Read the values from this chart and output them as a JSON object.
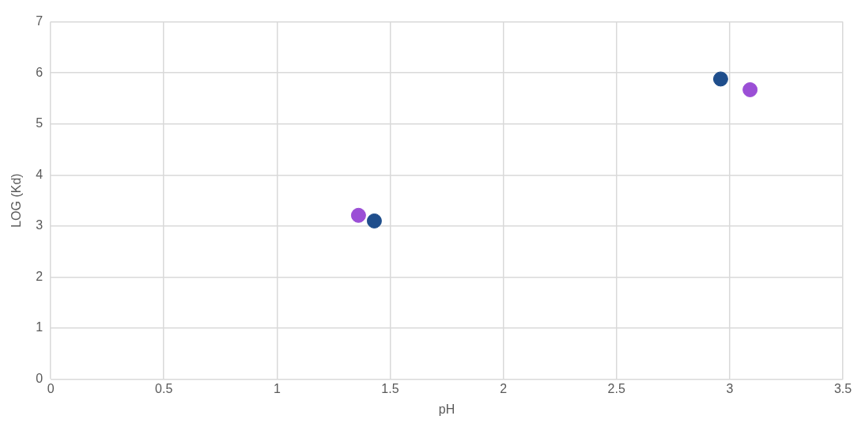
{
  "chart_data": {
    "type": "scatter",
    "xlabel": "pH",
    "ylabel": "LOG (Kd)",
    "xlim": [
      0,
      3.5
    ],
    "xticks": [
      0,
      0.5,
      1,
      1.5,
      2,
      2.5,
      3,
      3.5
    ],
    "ylim": [
      0,
      7
    ],
    "yticks": [
      0,
      1,
      2,
      3,
      4,
      5,
      6,
      7
    ],
    "grid": true,
    "legend": false,
    "marker": "circle",
    "series": [
      {
        "color": "#1f4e8c",
        "x": [
          1.43,
          2.96
        ],
        "values": [
          3.1,
          5.88
        ]
      },
      {
        "color": "#9b4fd6",
        "x": [
          1.36,
          3.09
        ],
        "values": [
          3.21,
          5.67
        ]
      }
    ]
  }
}
